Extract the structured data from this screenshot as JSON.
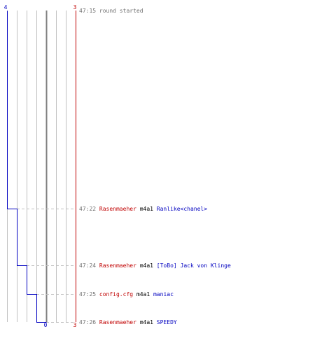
{
  "chart_data": {
    "type": "line",
    "title": "",
    "axis_top": {
      "left_value": "4",
      "right_value": "3"
    },
    "axis_bottom": {
      "middle_value": "0",
      "right_value": "3"
    },
    "colors": {
      "team_blue": "#0000c0",
      "team_red": "#c00000",
      "time": "#707070",
      "grid": "#c0c0c0",
      "zero": "#808080",
      "dash": "#c0c0c0"
    },
    "grid": true,
    "x_range": [
      -4,
      3
    ],
    "series": [
      {
        "color": "#0000c0",
        "points": [
          {
            "t": "47:15",
            "value": -4
          },
          {
            "t": "47:22",
            "value": -3
          },
          {
            "t": "47:24",
            "value": -2
          },
          {
            "t": "47:25",
            "value": -1
          },
          {
            "t": "47:26",
            "value": 0
          }
        ]
      },
      {
        "color": "#c00000",
        "points": [
          {
            "t": "47:15",
            "value": 3
          },
          {
            "t": "47:26",
            "value": 3
          }
        ]
      }
    ],
    "events": [
      {
        "time": "47:15",
        "type": "note",
        "text": "round started"
      },
      {
        "time": "47:22",
        "type": "kill",
        "killer": "Rasenmaeher",
        "weapon": "m4a1",
        "victim": "Ranlike<chanel>"
      },
      {
        "time": "47:24",
        "type": "kill",
        "killer": "Rasenmaeher",
        "weapon": "m4a1",
        "victim": "[ToBo] Jack von Klinge"
      },
      {
        "time": "47:25",
        "type": "kill",
        "killer": "config.cfg",
        "weapon": "m4a1",
        "victim": "maniac"
      },
      {
        "time": "47:26",
        "type": "kill",
        "killer": "Rasenmaeher",
        "weapon": "m4a1",
        "victim": "SPEEDY"
      }
    ]
  }
}
